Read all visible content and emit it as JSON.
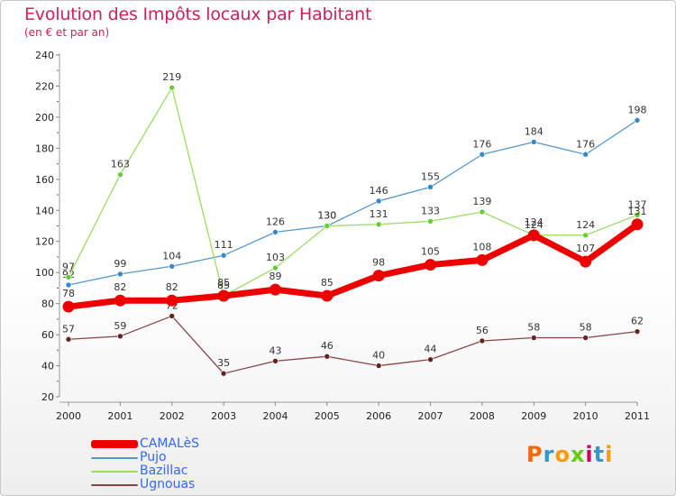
{
  "header": {
    "title": "Evolution des Impôts locaux par Habitant",
    "subtitle": "(en € et par an)"
  },
  "logo": {
    "text": "Proxiti",
    "colors": [
      "#ff6600",
      "#3399cc",
      "#ff9900",
      "#66cc00",
      "#cc0066",
      "#3399cc",
      "#ff9900"
    ]
  },
  "chart_data": {
    "type": "line",
    "title": "Evolution des Impôts locaux par Habitant",
    "subtitle": "(en € et par an)",
    "x": [
      "2000",
      "2001",
      "2002",
      "2003",
      "2004",
      "2005",
      "2006",
      "2007",
      "2008",
      "2009",
      "2010",
      "2011"
    ],
    "ylim": [
      20,
      240
    ],
    "yticks": [
      20,
      40,
      60,
      80,
      100,
      120,
      140,
      160,
      180,
      200,
      220,
      240
    ],
    "grid": false,
    "legend_position": "bottom-left",
    "series": [
      {
        "name": "Pujo",
        "color": "#5599cc",
        "point_color": "#3388cc",
        "width": 1.3,
        "radius": 3,
        "values": [
          92,
          99,
          104,
          111,
          126,
          130,
          146,
          155,
          176,
          184,
          176,
          198
        ]
      },
      {
        "name": "Bazillac",
        "color": "#99dd66",
        "point_color": "#66cc33",
        "width": 1.3,
        "radius": 3,
        "values": [
          97,
          163,
          219,
          85,
          103,
          130,
          131,
          133,
          139,
          124,
          124,
          137
        ]
      },
      {
        "name": "Ugnouas",
        "color": "#884444",
        "point_color": "#662222",
        "width": 1.3,
        "radius": 3,
        "values": [
          57,
          59,
          72,
          35,
          43,
          46,
          40,
          44,
          56,
          58,
          58,
          62
        ]
      },
      {
        "name": "CAMALèS",
        "color": "#ee0000",
        "point_color": "#ee0000",
        "width": 7,
        "radius": 6.5,
        "values": [
          78,
          82,
          82,
          85,
          89,
          85,
          98,
          105,
          108,
          124,
          107,
          131
        ]
      }
    ],
    "legend": [
      "CAMALèS",
      "Pujo",
      "Bazillac",
      "Ugnouas"
    ]
  }
}
